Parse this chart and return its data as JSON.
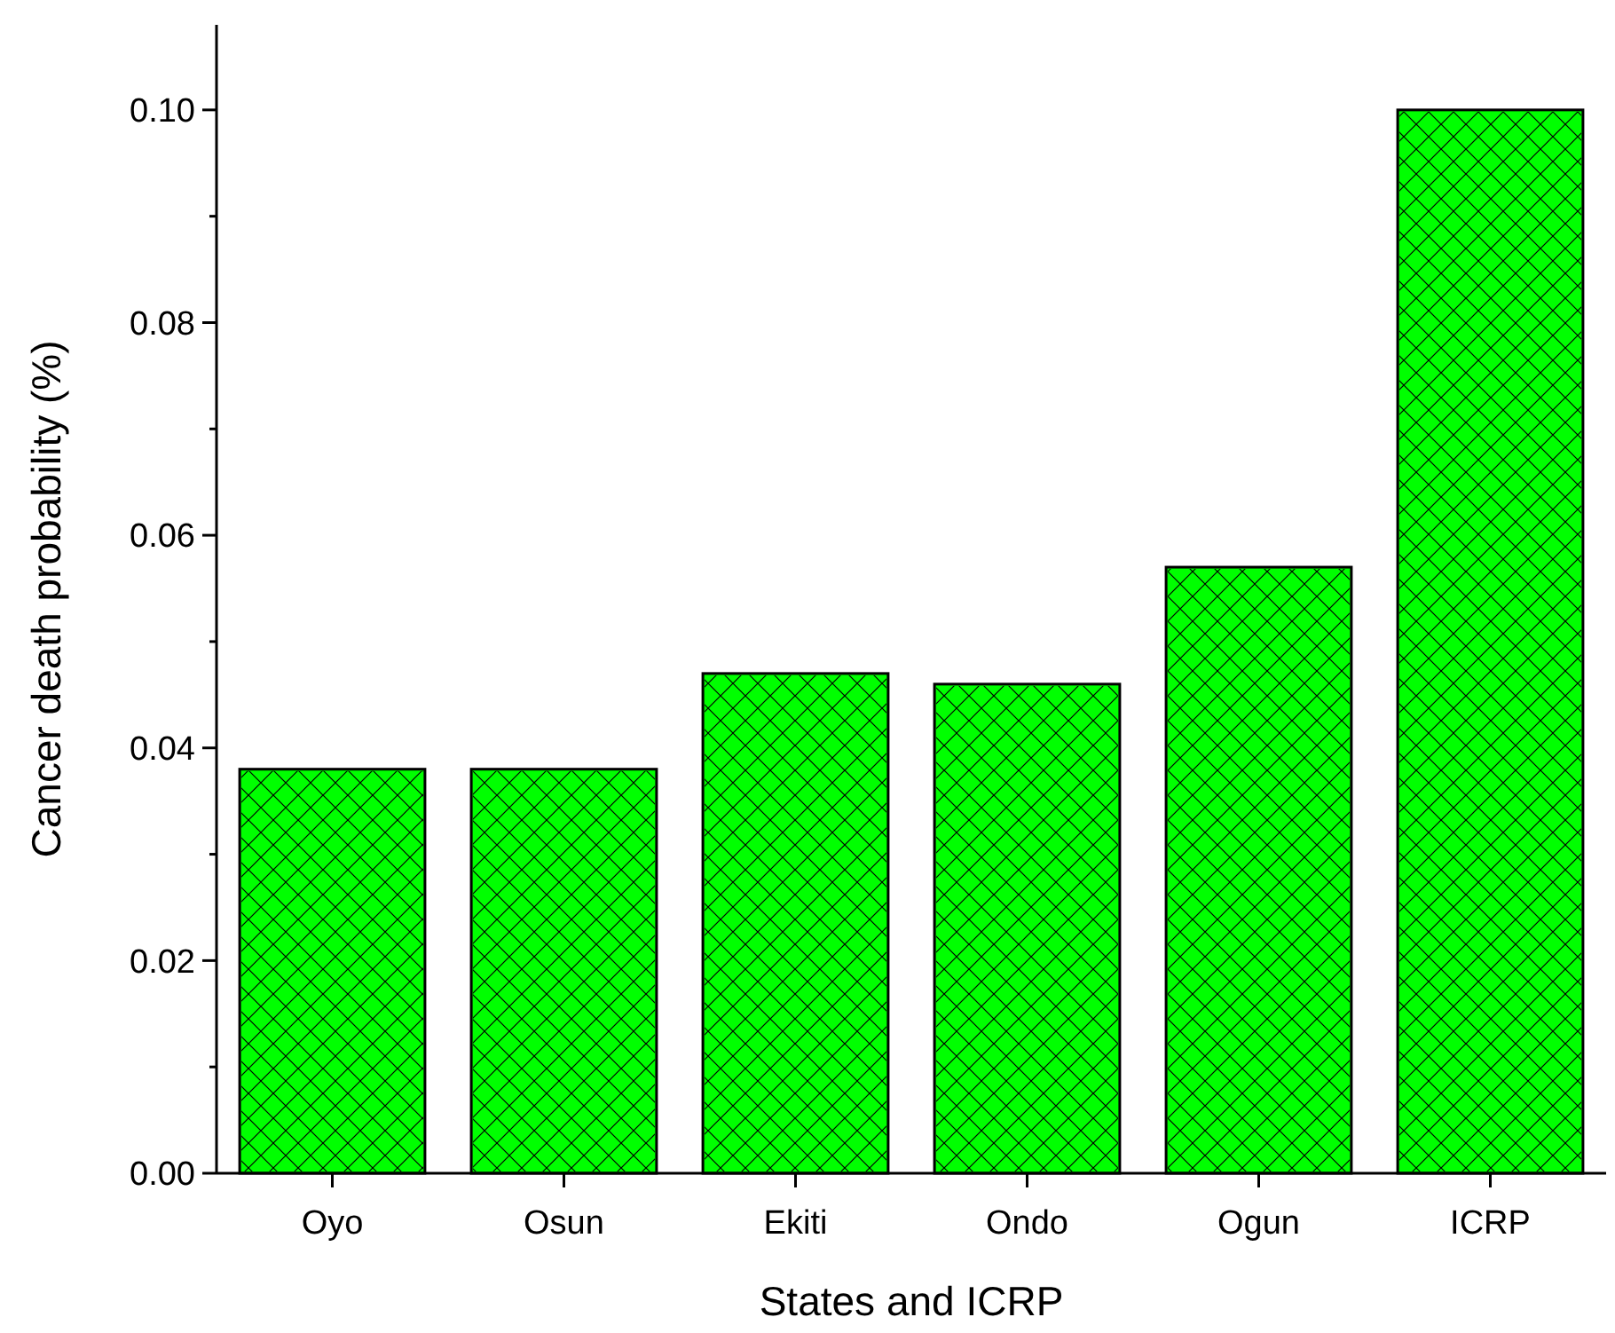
{
  "chart_data": {
    "type": "bar",
    "xlabel": "States and ICRP",
    "ylabel": "Cancer death probability (%)",
    "categories": [
      "Oyo",
      "Osun",
      "Ekiti",
      "Ondo",
      "Ogun",
      "ICRP"
    ],
    "values": [
      0.038,
      0.038,
      0.047,
      0.046,
      0.057,
      0.1
    ],
    "color": "#00ff00",
    "ylim": [
      0,
      0.108
    ],
    "yticks": [
      {
        "value": 0,
        "label": "0.00"
      },
      {
        "value": 0.01,
        "label": null
      },
      {
        "value": 0.02,
        "label": "0.02"
      },
      {
        "value": 0.03,
        "label": null
      },
      {
        "value": 0.04,
        "label": "0.04"
      },
      {
        "value": 0.05,
        "label": null
      },
      {
        "value": 0.06,
        "label": "0.06"
      },
      {
        "value": 0.07,
        "label": null
      },
      {
        "value": 0.08,
        "label": "0.08"
      },
      {
        "value": 0.09,
        "label": null
      },
      {
        "value": 0.1,
        "label": "0.10"
      }
    ],
    "grid": false
  }
}
